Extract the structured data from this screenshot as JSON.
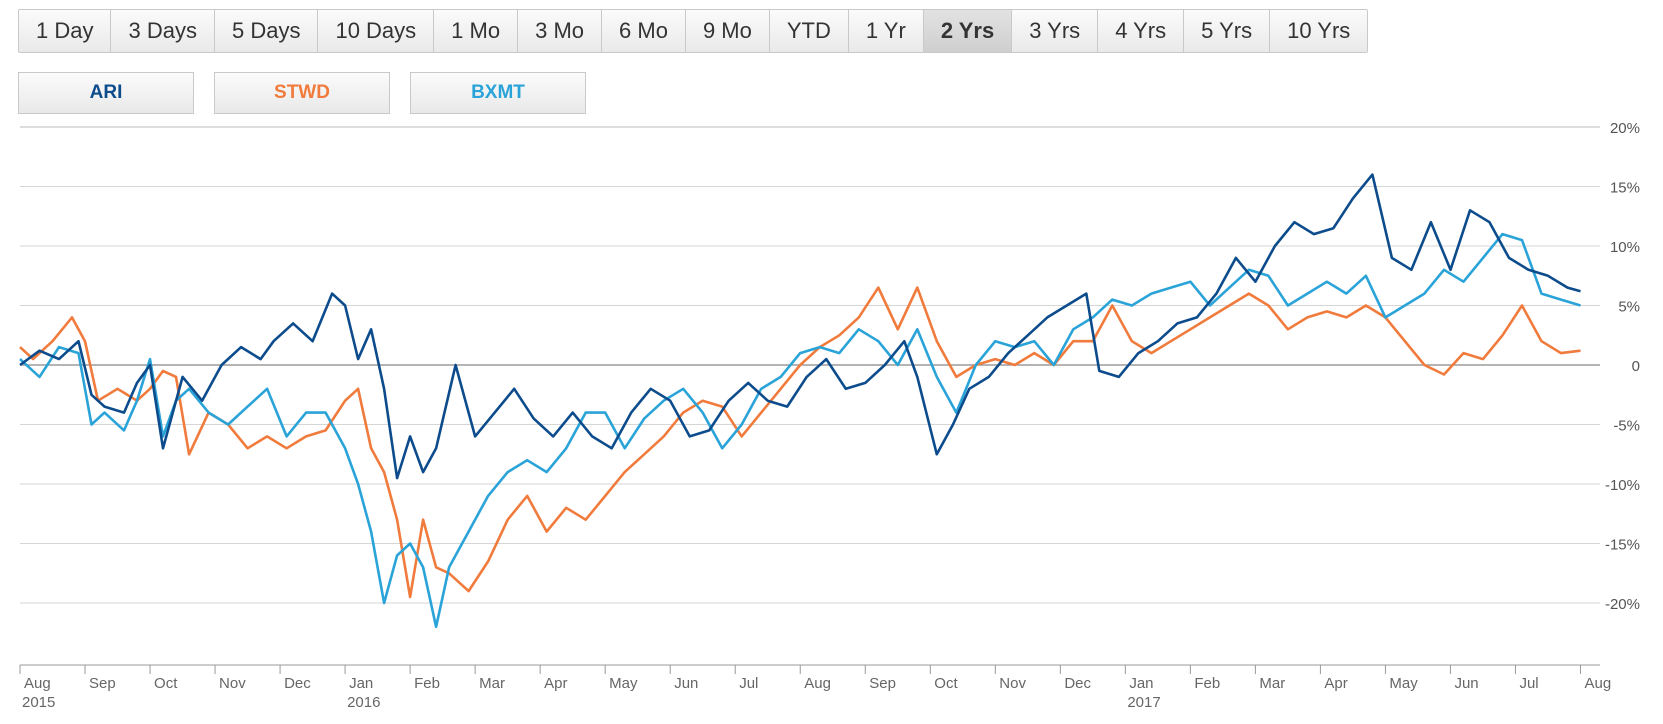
{
  "range_buttons": [
    {
      "label": "1 Day",
      "active": false
    },
    {
      "label": "3 Days",
      "active": false
    },
    {
      "label": "5 Days",
      "active": false
    },
    {
      "label": "10 Days",
      "active": false
    },
    {
      "label": "1 Mo",
      "active": false
    },
    {
      "label": "3 Mo",
      "active": false
    },
    {
      "label": "6 Mo",
      "active": false
    },
    {
      "label": "9 Mo",
      "active": false
    },
    {
      "label": "YTD",
      "active": false
    },
    {
      "label": "1 Yr",
      "active": false
    },
    {
      "label": "2 Yrs",
      "active": true
    },
    {
      "label": "3 Yrs",
      "active": false
    },
    {
      "label": "4 Yrs",
      "active": false
    },
    {
      "label": "5 Yrs",
      "active": false
    },
    {
      "label": "10 Yrs",
      "active": false
    }
  ],
  "tickers": [
    {
      "label": "ARI",
      "color": "#0d4c8c"
    },
    {
      "label": "STWD",
      "color": "#f07b3c"
    },
    {
      "label": "BXMT",
      "color": "#2aa3d8"
    }
  ],
  "chart_data": {
    "type": "line",
    "ylim": [
      -25,
      20
    ],
    "y_ticks": [
      20,
      15,
      10,
      5,
      0,
      -5,
      -10,
      -15,
      -20
    ],
    "y_tick_labels": [
      "20%",
      "15%",
      "10%",
      "5%",
      "0",
      "-5%",
      "-10%",
      "-15%",
      "-20%"
    ],
    "xlim": [
      0,
      24.3
    ],
    "x_tick_labels": [
      {
        "month": "Aug",
        "year": "2015"
      },
      {
        "month": "Sep",
        "year": ""
      },
      {
        "month": "Oct",
        "year": ""
      },
      {
        "month": "Nov",
        "year": ""
      },
      {
        "month": "Dec",
        "year": ""
      },
      {
        "month": "Jan",
        "year": "2016"
      },
      {
        "month": "Feb",
        "year": ""
      },
      {
        "month": "Mar",
        "year": ""
      },
      {
        "month": "Apr",
        "year": ""
      },
      {
        "month": "May",
        "year": ""
      },
      {
        "month": "Jun",
        "year": ""
      },
      {
        "month": "Jul",
        "year": ""
      },
      {
        "month": "Aug",
        "year": ""
      },
      {
        "month": "Sep",
        "year": ""
      },
      {
        "month": "Oct",
        "year": ""
      },
      {
        "month": "Nov",
        "year": ""
      },
      {
        "month": "Dec",
        "year": ""
      },
      {
        "month": "Jan",
        "year": "2017"
      },
      {
        "month": "Feb",
        "year": ""
      },
      {
        "month": "Mar",
        "year": ""
      },
      {
        "month": "Apr",
        "year": ""
      },
      {
        "month": "May",
        "year": ""
      },
      {
        "month": "Jun",
        "year": ""
      },
      {
        "month": "Jul",
        "year": ""
      },
      {
        "month": "Aug",
        "year": ""
      }
    ],
    "grid": true,
    "series": [
      {
        "name": "ARI",
        "color": "#0d4c8c",
        "x": [
          0,
          0.3,
          0.6,
          0.9,
          1.1,
          1.3,
          1.6,
          1.8,
          2.0,
          2.2,
          2.35,
          2.5,
          2.8,
          3.1,
          3.4,
          3.7,
          3.9,
          4.2,
          4.5,
          4.8,
          5.0,
          5.2,
          5.4,
          5.6,
          5.8,
          6.0,
          6.2,
          6.4,
          6.7,
          7.0,
          7.3,
          7.6,
          7.9,
          8.2,
          8.5,
          8.8,
          9.1,
          9.4,
          9.7,
          10.0,
          10.3,
          10.6,
          10.9,
          11.2,
          11.5,
          11.8,
          12.1,
          12.4,
          12.7,
          13.0,
          13.3,
          13.6,
          13.8,
          14.1,
          14.35,
          14.6,
          14.9,
          15.2,
          15.5,
          15.8,
          16.1,
          16.4,
          16.6,
          16.9,
          17.2,
          17.5,
          17.8,
          18.1,
          18.4,
          18.7,
          19.0,
          19.3,
          19.6,
          19.9,
          20.2,
          20.5,
          20.8,
          21.1,
          21.4,
          21.7,
          22.0,
          22.3,
          22.6,
          22.9,
          23.2,
          23.5,
          23.8,
          24.0
        ],
        "values": [
          0,
          1.2,
          0.5,
          2.0,
          -2.5,
          -3.5,
          -4.0,
          -1.5,
          0,
          -7.0,
          -4.0,
          -1.0,
          -3.0,
          0,
          1.5,
          0.5,
          2.0,
          3.5,
          2.0,
          6.0,
          5.0,
          0.5,
          3.0,
          -2.0,
          -9.5,
          -6.0,
          -9.0,
          -7.0,
          0,
          -6.0,
          -4.0,
          -2.0,
          -4.5,
          -6.0,
          -4.0,
          -6.0,
          -7.0,
          -4.0,
          -2.0,
          -3.0,
          -6.0,
          -5.5,
          -3.0,
          -1.5,
          -3.0,
          -3.5,
          -1.0,
          0.5,
          -2.0,
          -1.5,
          0,
          2.0,
          -1.0,
          -7.5,
          -5.0,
          -2.0,
          -1.0,
          1.0,
          2.5,
          4.0,
          5.0,
          6.0,
          -0.5,
          -1.0,
          1.0,
          2.0,
          3.5,
          4.0,
          6.0,
          9.0,
          7.0,
          10.0,
          12.0,
          11.0,
          11.5,
          14.0,
          16.0,
          9.0,
          8.0,
          12.0,
          8.0,
          13.0,
          12.0,
          9.0,
          8.0,
          7.5,
          6.5,
          6.2
        ]
      },
      {
        "name": "STWD",
        "color": "#f07b3c",
        "x": [
          0,
          0.2,
          0.5,
          0.8,
          1.0,
          1.2,
          1.5,
          1.8,
          2.0,
          2.2,
          2.4,
          2.6,
          2.9,
          3.2,
          3.5,
          3.8,
          4.1,
          4.4,
          4.7,
          5.0,
          5.2,
          5.4,
          5.6,
          5.8,
          6.0,
          6.2,
          6.4,
          6.6,
          6.9,
          7.2,
          7.5,
          7.8,
          8.1,
          8.4,
          8.7,
          9.0,
          9.3,
          9.6,
          9.9,
          10.2,
          10.5,
          10.8,
          11.1,
          11.4,
          11.7,
          12.0,
          12.3,
          12.6,
          12.9,
          13.2,
          13.5,
          13.8,
          14.1,
          14.4,
          14.7,
          15.0,
          15.3,
          15.6,
          15.9,
          16.2,
          16.5,
          16.8,
          17.1,
          17.4,
          17.7,
          18.0,
          18.3,
          18.6,
          18.9,
          19.2,
          19.5,
          19.8,
          20.1,
          20.4,
          20.7,
          21.0,
          21.3,
          21.6,
          21.9,
          22.2,
          22.5,
          22.8,
          23.1,
          23.4,
          23.7,
          24.0
        ],
        "values": [
          1.5,
          0.5,
          2.0,
          4.0,
          2.0,
          -3.0,
          -2.0,
          -3.0,
          -2.0,
          -0.5,
          -1.0,
          -7.5,
          -4.0,
          -5.0,
          -7.0,
          -6.0,
          -7.0,
          -6.0,
          -5.5,
          -3.0,
          -2.0,
          -7.0,
          -9.0,
          -13.0,
          -19.5,
          -13.0,
          -17.0,
          -17.5,
          -19.0,
          -16.5,
          -13.0,
          -11.0,
          -14.0,
          -12.0,
          -13.0,
          -11.0,
          -9.0,
          -7.5,
          -6.0,
          -4.0,
          -3.0,
          -3.5,
          -6.0,
          -4.0,
          -2.0,
          0,
          1.5,
          2.5,
          4.0,
          6.5,
          3.0,
          6.5,
          2.0,
          -1.0,
          0,
          0.5,
          0,
          1.0,
          0,
          2.0,
          2.0,
          5.0,
          2.0,
          1.0,
          2.0,
          3.0,
          4.0,
          5.0,
          6.0,
          5.0,
          3.0,
          4.0,
          4.5,
          4.0,
          5.0,
          4.0,
          2.0,
          0,
          -0.8,
          1.0,
          0.5,
          2.5,
          5.0,
          2.0,
          1.0,
          1.2
        ]
      },
      {
        "name": "BXMT",
        "color": "#2aa3d8",
        "x": [
          0,
          0.3,
          0.6,
          0.9,
          1.1,
          1.3,
          1.6,
          1.8,
          2.0,
          2.2,
          2.4,
          2.6,
          2.9,
          3.2,
          3.5,
          3.8,
          4.1,
          4.4,
          4.7,
          5.0,
          5.2,
          5.4,
          5.6,
          5.8,
          6.0,
          6.2,
          6.4,
          6.6,
          6.9,
          7.2,
          7.5,
          7.8,
          8.1,
          8.4,
          8.7,
          9.0,
          9.3,
          9.6,
          9.9,
          10.2,
          10.5,
          10.8,
          11.1,
          11.4,
          11.7,
          12.0,
          12.3,
          12.6,
          12.9,
          13.2,
          13.5,
          13.8,
          14.1,
          14.4,
          14.7,
          15.0,
          15.3,
          15.6,
          15.9,
          16.2,
          16.5,
          16.8,
          17.1,
          17.4,
          17.7,
          18.0,
          18.3,
          18.6,
          18.9,
          19.2,
          19.5,
          19.8,
          20.1,
          20.4,
          20.7,
          21.0,
          21.3,
          21.6,
          21.9,
          22.2,
          22.5,
          22.8,
          23.1,
          23.4,
          23.7,
          24.0
        ],
        "values": [
          0.5,
          -1.0,
          1.5,
          1.0,
          -5.0,
          -4.0,
          -5.5,
          -3.0,
          0.5,
          -6.0,
          -3.0,
          -2.0,
          -4.0,
          -5.0,
          -3.5,
          -2.0,
          -6.0,
          -4.0,
          -4.0,
          -7.0,
          -10.0,
          -14.0,
          -20.0,
          -16.0,
          -15.0,
          -17.0,
          -22.0,
          -17.0,
          -14.0,
          -11.0,
          -9.0,
          -8.0,
          -9.0,
          -7.0,
          -4.0,
          -4.0,
          -7.0,
          -4.5,
          -3.0,
          -2.0,
          -4.0,
          -7.0,
          -5.0,
          -2.0,
          -1.0,
          1.0,
          1.5,
          1.0,
          3.0,
          2.0,
          0,
          3.0,
          -1.0,
          -4.0,
          0,
          2.0,
          1.5,
          2.0,
          0,
          3.0,
          4.0,
          5.5,
          5.0,
          6.0,
          6.5,
          7.0,
          5.0,
          6.5,
          8.0,
          7.5,
          5.0,
          6.0,
          7.0,
          6.0,
          7.5,
          4.0,
          5.0,
          6.0,
          8.0,
          7.0,
          9.0,
          11.0,
          10.5,
          6.0,
          5.5,
          5.0
        ]
      }
    ]
  }
}
